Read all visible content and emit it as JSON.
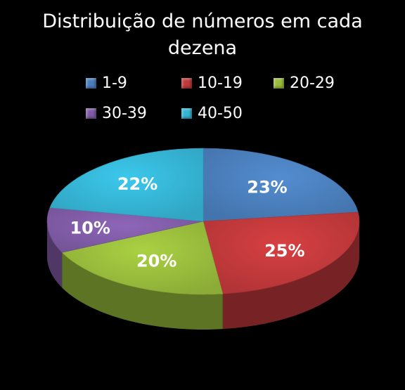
{
  "chart_data": {
    "type": "pie",
    "title": "Distribuição de números em cada dezena",
    "categories": [
      "1-9",
      "10-19",
      "20-29",
      "30-39",
      "40-50"
    ],
    "values": [
      23,
      25,
      20,
      10,
      22
    ],
    "labels": [
      "23%",
      "25%",
      "20%",
      "10%",
      "22%"
    ],
    "colors": [
      "#4a7ebb",
      "#c0393b",
      "#98bb3c",
      "#7f5ba5",
      "#35b3d3"
    ],
    "legend_position": "top",
    "style": "3d"
  }
}
